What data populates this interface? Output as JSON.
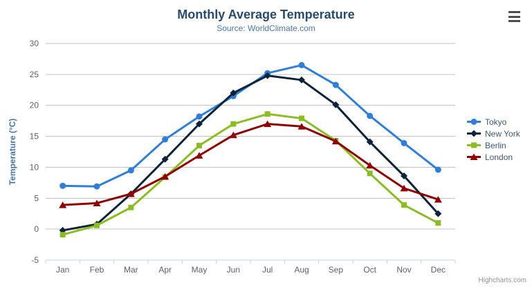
{
  "chart_data": {
    "type": "line",
    "title": "Monthly Average Temperature",
    "subtitle": "Source: WorldClimate.com",
    "categories": [
      "Jan",
      "Feb",
      "Mar",
      "Apr",
      "May",
      "Jun",
      "Jul",
      "Aug",
      "Sep",
      "Oct",
      "Nov",
      "Dec"
    ],
    "xlabel": "",
    "ylabel": "Temperature (°C)",
    "ylim": [
      -5,
      30
    ],
    "ytick_interval": 5,
    "grid": "horizontal",
    "legend_position": "right",
    "series": [
      {
        "name": "Tokyo",
        "color": "#2f7ed8",
        "marker": "circle",
        "values": [
          7.0,
          6.9,
          9.5,
          14.5,
          18.2,
          21.5,
          25.2,
          26.5,
          23.3,
          18.3,
          13.9,
          9.6
        ]
      },
      {
        "name": "New York",
        "color": "#0d233a",
        "marker": "diamond",
        "values": [
          -0.2,
          0.8,
          5.7,
          11.3,
          17.0,
          22.0,
          24.8,
          24.1,
          20.1,
          14.1,
          8.6,
          2.5
        ]
      },
      {
        "name": "Berlin",
        "color": "#8bbc21",
        "marker": "square",
        "values": [
          -0.9,
          0.6,
          3.5,
          8.4,
          13.5,
          17.0,
          18.6,
          17.9,
          14.3,
          9.0,
          3.9,
          1.0
        ]
      },
      {
        "name": "London",
        "color": "#910000",
        "marker": "triangle",
        "values": [
          3.9,
          4.2,
          5.7,
          8.5,
          11.9,
          15.2,
          17.0,
          16.6,
          14.2,
          10.3,
          6.6,
          4.8
        ]
      }
    ]
  },
  "palette": {
    "background": "#ffffff",
    "title_color": "#274b6d",
    "subtitle_color": "#4d759e",
    "axis_label_color": "#606060",
    "y_axis_title_color": "#4673a7",
    "grid_color": "#c0c0c0",
    "axis_line_color": "#c0d0e0",
    "legend_text_color": "#3e576f",
    "credit_color": "#909090",
    "export_icon_color": "#4d4d4d"
  },
  "icons": {
    "export_menu": "hamburger-menu-icon"
  },
  "credit": {
    "label": "Highcharts.com"
  }
}
